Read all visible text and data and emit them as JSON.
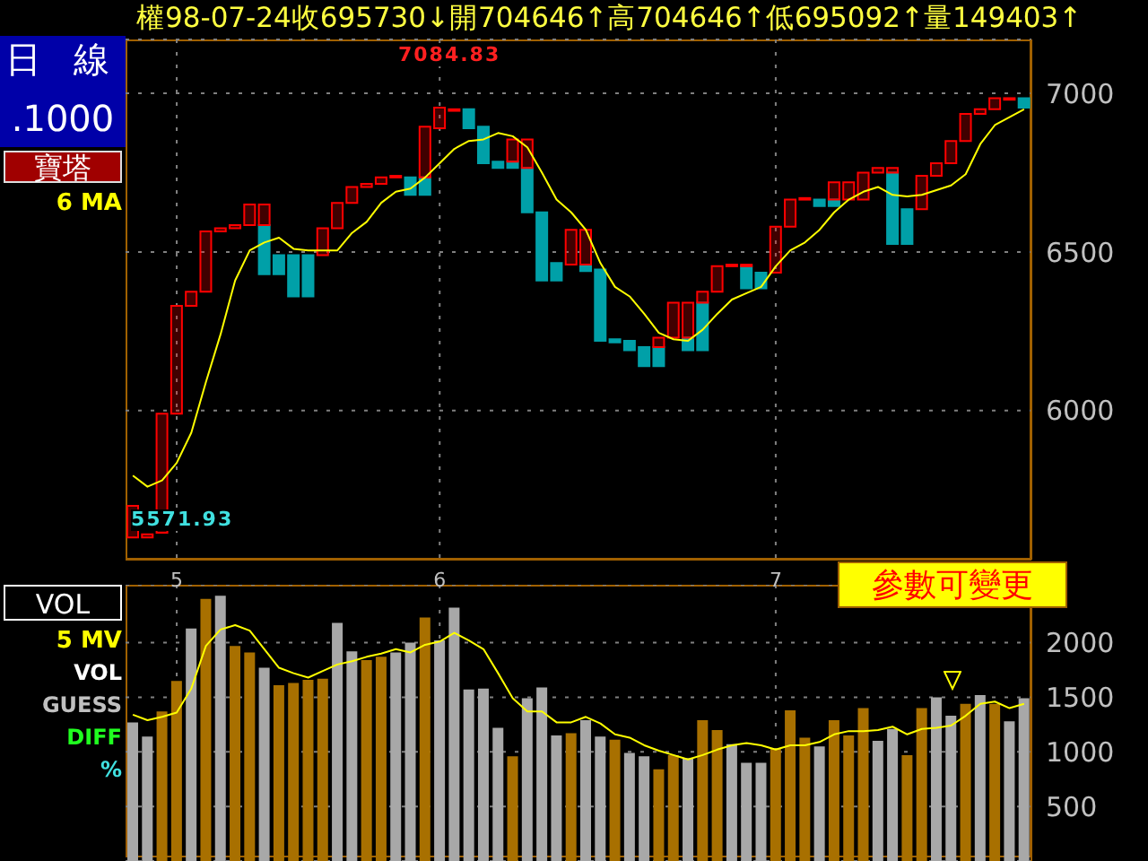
{
  "chart_data": [
    {
      "type": "bar",
      "title": "權98-07-24收695730↓開704646↑高704646↑低695092↑量149403↑",
      "categories": [
        null,
        null,
        null,
        "5",
        null,
        null,
        null,
        null,
        null,
        null,
        null,
        null,
        null,
        null,
        null,
        null,
        null,
        null,
        null,
        null,
        null,
        "6",
        null,
        null,
        null,
        null,
        null,
        null,
        null,
        null,
        null,
        null,
        null,
        null,
        null,
        null,
        null,
        null,
        null,
        null,
        null,
        null,
        null,
        null,
        "7",
        null,
        null,
        null,
        null,
        null,
        null,
        null,
        null,
        null,
        null,
        null,
        null,
        null,
        null,
        null,
        null,
        null
      ],
      "series": [
        {
          "color": "#00a0a8",
          "base": [
            null,
            null,
            null,
            null,
            null,
            null,
            null,
            null,
            null,
            6430,
            6430,
            6360,
            6360,
            null,
            null,
            null,
            null,
            null,
            null,
            6680,
            6680,
            null,
            null,
            6890,
            6780,
            6765,
            6765,
            6625,
            6410,
            6410,
            null,
            6440,
            6220,
            6215,
            6190,
            6140,
            6140,
            null,
            6190,
            6190,
            null,
            null,
            6385,
            6385,
            null,
            null,
            null,
            6645,
            6645,
            null,
            null,
            null,
            6525,
            6525,
            null,
            null,
            null,
            null,
            null,
            null,
            null,
            6955
          ],
          "values": [
            null,
            null,
            null,
            null,
            null,
            null,
            null,
            null,
            null,
            155,
            60,
            130,
            130,
            null,
            null,
            null,
            null,
            null,
            null,
            55,
            55,
            null,
            null,
            60,
            115,
            20,
            20,
            140,
            215,
            55,
            null,
            20,
            225,
            10,
            30,
            60,
            60,
            null,
            40,
            150,
            null,
            null,
            70,
            50,
            null,
            null,
            null,
            20,
            20,
            null,
            null,
            null,
            225,
            110,
            null,
            null,
            null,
            null,
            null,
            null,
            null,
            30
          ]
        },
        {
          "color": "#ff0000",
          "base": [
            5600,
            5600,
            5615,
            5990,
            6330,
            6375,
            6565,
            6575,
            6585,
            6585,
            null,
            null,
            null,
            6490,
            6575,
            6655,
            6705,
            6715,
            6735,
            null,
            6735,
            6890,
            6945,
            null,
            null,
            null,
            6785,
            6765,
            null,
            null,
            6460,
            6460,
            null,
            null,
            null,
            null,
            6200,
            6230,
            6230,
            6340,
            6375,
            6455,
            6455,
            null,
            6435,
            6580,
            6665,
            null,
            6665,
            6665,
            6665,
            6750,
            6750,
            null,
            6635,
            6740,
            6780,
            6850,
            6935,
            6950,
            6980,
            null
          ],
          "values": [
            100,
            10,
            375,
            340,
            45,
            190,
            10,
            10,
            65,
            65,
            null,
            null,
            null,
            85,
            80,
            50,
            10,
            20,
            5,
            null,
            160,
            65,
            5,
            null,
            null,
            null,
            70,
            90,
            null,
            null,
            110,
            110,
            null,
            null,
            null,
            null,
            30,
            110,
            110,
            35,
            80,
            5,
            5,
            null,
            145,
            85,
            5,
            null,
            55,
            55,
            85,
            15,
            15,
            null,
            105,
            40,
            70,
            85,
            15,
            35,
            5,
            null
          ]
        },
        {
          "type": "line",
          "name": "6 MA",
          "color": "#ffff00",
          "values": [
            5795,
            5760,
            5780,
            5835,
            5930,
            6090,
            6240,
            6410,
            6505,
            6530,
            6545,
            6510,
            6505,
            6505,
            6505,
            6560,
            6595,
            6655,
            6690,
            6700,
            6735,
            6780,
            6825,
            6850,
            6855,
            6875,
            6865,
            6830,
            6750,
            6665,
            6625,
            6570,
            6465,
            6390,
            6360,
            6305,
            6245,
            6225,
            6220,
            6255,
            6305,
            6350,
            6370,
            6390,
            6455,
            6505,
            6530,
            6570,
            6625,
            6665,
            6690,
            6705,
            6680,
            6675,
            6680,
            6695,
            6710,
            6745,
            6840,
            6900,
            6925,
            6950
          ]
        }
      ],
      "ylim": [
        5530,
        7170
      ],
      "yticks": [
        6000,
        6500,
        7000
      ],
      "grid": true,
      "legend": "left",
      "marker": "none",
      "annotations": [
        "日 線",
        ".1000",
        "寶塔",
        "7084.83",
        "5571.93",
        "參數可變更"
      ]
    },
    {
      "type": "bar",
      "categories": [
        null,
        null,
        null,
        "5",
        null,
        null,
        null,
        null,
        null,
        null,
        null,
        null,
        null,
        null,
        null,
        null,
        null,
        null,
        null,
        null,
        null,
        "6",
        null,
        null,
        null,
        null,
        null,
        null,
        null,
        null,
        null,
        null,
        null,
        null,
        null,
        null,
        null,
        null,
        null,
        null,
        null,
        null,
        null,
        null,
        "7",
        null,
        null,
        null,
        null,
        null,
        null,
        null,
        null,
        null,
        null,
        null,
        null,
        null,
        null,
        null,
        null,
        null
      ],
      "series": [
        {
          "colors": [
            "#a8a8a8",
            "#a8a8a8",
            "#a87000",
            "#a87000",
            "#a8a8a8",
            "#a87000",
            "#a8a8a8",
            "#a87000",
            "#a87000",
            "#a8a8a8",
            "#a87000",
            "#a87000",
            "#a87000",
            "#a87000",
            "#a8a8a8",
            "#a8a8a8",
            "#a87000",
            "#a87000",
            "#a8a8a8",
            "#a8a8a8",
            "#a87000",
            "#a8a8a8",
            "#a8a8a8",
            "#a8a8a8",
            "#a8a8a8",
            "#a8a8a8",
            "#a87000",
            "#a8a8a8",
            "#a8a8a8",
            "#a8a8a8",
            "#a87000",
            "#a8a8a8",
            "#a8a8a8",
            "#a87000",
            "#a8a8a8",
            "#a8a8a8",
            "#a87000",
            "#a87000",
            "#a8a8a8",
            "#a87000",
            "#a87000",
            "#a8a8a8",
            "#a8a8a8",
            "#a8a8a8",
            "#a87000",
            "#a87000",
            "#a87000",
            "#a8a8a8",
            "#a87000",
            "#a87000",
            "#a87000",
            "#a8a8a8",
            "#a8a8a8",
            "#a87000",
            "#a87000",
            "#a8a8a8",
            "#a8a8a8",
            "#a87000",
            "#a8a8a8",
            "#a87000",
            "#a8a8a8",
            "#a8a8a8"
          ],
          "values": [
            1270,
            1140,
            1370,
            1650,
            2130,
            2400,
            2430,
            1970,
            1910,
            1770,
            1610,
            1630,
            1660,
            1670,
            2180,
            1920,
            1840,
            1870,
            1910,
            2000,
            2230,
            2020,
            2320,
            1570,
            1580,
            1220,
            960,
            1490,
            1590,
            1150,
            1170,
            1290,
            1140,
            1110,
            990,
            960,
            840,
            970,
            940,
            1290,
            1200,
            1070,
            900,
            900,
            1030,
            1380,
            1130,
            1050,
            1290,
            1150,
            1400,
            1100,
            1210,
            970,
            1400,
            1500,
            1330,
            1440,
            1520,
            1440,
            1280,
            1490
          ]
        },
        {
          "type": "line",
          "name": "5 MV",
          "color": "#ffff00",
          "values": [
            1340,
            1290,
            1320,
            1360,
            1580,
            1970,
            2120,
            2160,
            2110,
            1940,
            1770,
            1720,
            1680,
            1740,
            1800,
            1830,
            1870,
            1900,
            1940,
            1910,
            1980,
            2010,
            2090,
            2020,
            1940,
            1720,
            1490,
            1370,
            1370,
            1270,
            1270,
            1320,
            1260,
            1160,
            1130,
            1060,
            1010,
            970,
            930,
            970,
            1020,
            1060,
            1080,
            1060,
            1020,
            1060,
            1060,
            1090,
            1160,
            1190,
            1190,
            1200,
            1230,
            1160,
            1210,
            1220,
            1240,
            1330,
            1440,
            1460,
            1400,
            1440
          ]
        }
      ],
      "ylim": [
        0,
        2530
      ],
      "yticks": [
        500,
        1000,
        1500,
        2000
      ],
      "grid": true,
      "legend": "left",
      "marker": "none",
      "tick_labels": "y",
      "annotations": [
        "VOL",
        "VOL",
        "GUESS",
        "DIFF",
        "%"
      ]
    }
  ]
}
